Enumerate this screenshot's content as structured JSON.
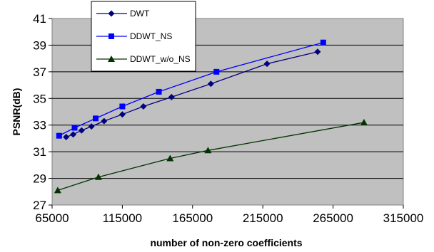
{
  "chart_data": {
    "type": "line",
    "title": "",
    "xlabel": "number of non-zero coefficients",
    "ylabel": "PSNR(dB)",
    "xlim": [
      65000,
      315000
    ],
    "ylim": [
      27,
      41
    ],
    "xticks": [
      "65000",
      "115000",
      "165000",
      "215000",
      "265000",
      "315000"
    ],
    "yticks": [
      "27",
      "29",
      "31",
      "33",
      "35",
      "37",
      "39",
      "41"
    ],
    "grid": "horizontal",
    "legend_position": "top-left",
    "plot_background": "#c0c0c0",
    "series": [
      {
        "name": "DWT",
        "marker": "diamond",
        "color": "#000080",
        "x": [
          75000,
          80000,
          86000,
          93000,
          102000,
          115000,
          130000,
          150000,
          178000,
          218000,
          254000
        ],
        "y": [
          32.1,
          32.3,
          32.6,
          32.9,
          33.3,
          33.8,
          34.4,
          35.1,
          36.1,
          37.6,
          38.5
        ]
      },
      {
        "name": "DDWT_NS",
        "marker": "square",
        "color": "#0000ff",
        "x": [
          70000,
          81000,
          96000,
          115000,
          141000,
          182000,
          258000
        ],
        "y": [
          32.2,
          32.8,
          33.5,
          34.4,
          35.5,
          37.0,
          39.2
        ]
      },
      {
        "name": "DDWT_w/o_NS",
        "marker": "triangle",
        "color": "#003300",
        "x": [
          69000,
          98000,
          149000,
          176000,
          287000
        ],
        "y": [
          28.1,
          29.1,
          30.5,
          31.1,
          33.2
        ]
      }
    ]
  }
}
